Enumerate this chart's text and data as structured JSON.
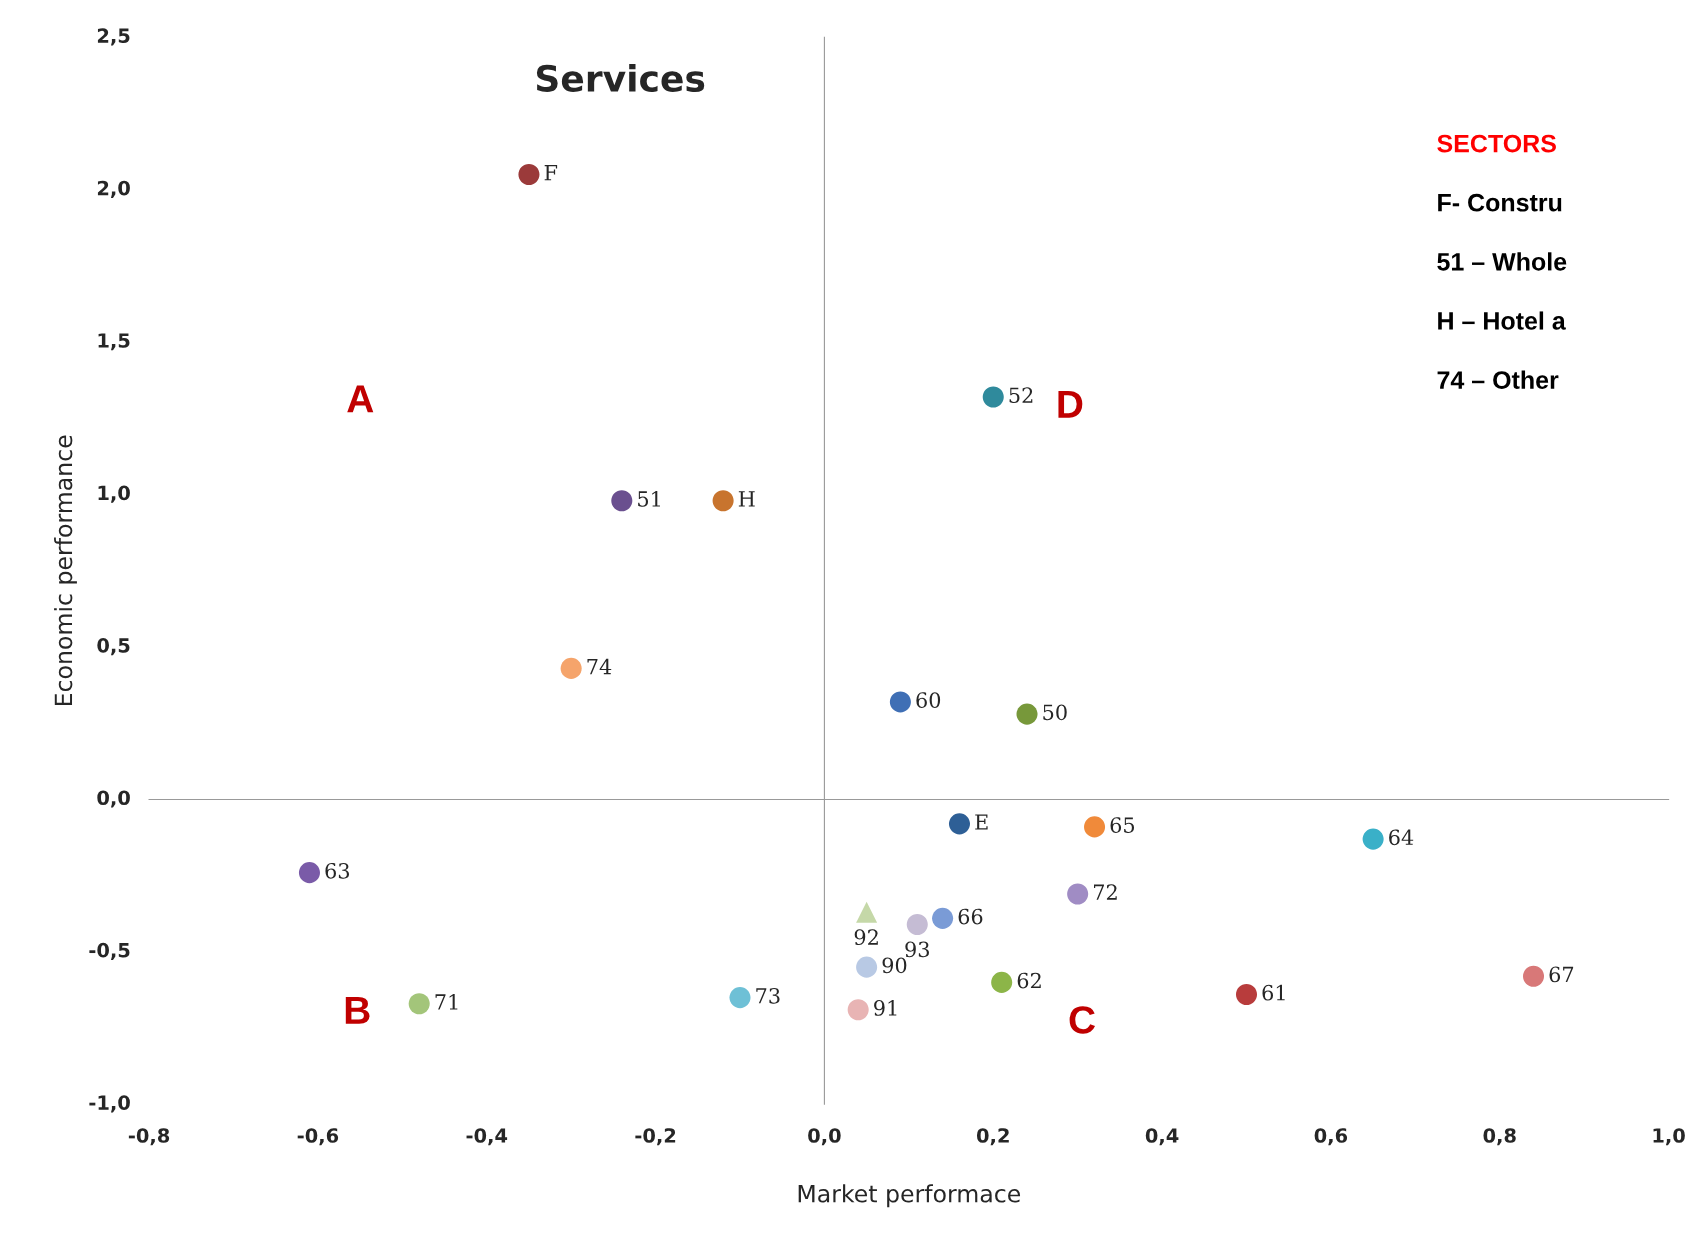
{
  "chart_data": {
    "type": "scatter",
    "title": "Services",
    "xlabel": "Market performace",
    "ylabel": "Economic performance",
    "xlim": [
      -0.8,
      1.0
    ],
    "ylim": [
      -1.0,
      2.5
    ],
    "xticks": [
      {
        "value": -0.8,
        "label": "-0,8"
      },
      {
        "value": -0.6,
        "label": "-0,6"
      },
      {
        "value": -0.4,
        "label": "-0,4"
      },
      {
        "value": -0.2,
        "label": "-0,2"
      },
      {
        "value": 0.0,
        "label": "0,0"
      },
      {
        "value": 0.2,
        "label": "0,2"
      },
      {
        "value": 0.4,
        "label": "0,4"
      },
      {
        "value": 0.6,
        "label": "0,6"
      },
      {
        "value": 0.8,
        "label": "0,8"
      },
      {
        "value": 1.0,
        "label": "1,0"
      }
    ],
    "yticks": [
      {
        "value": -1.0,
        "label": "-1,0"
      },
      {
        "value": -0.5,
        "label": "-0,5"
      },
      {
        "value": 0.0,
        "label": "0,0"
      },
      {
        "value": 0.5,
        "label": "0,5"
      },
      {
        "value": 1.0,
        "label": "1,0"
      },
      {
        "value": 1.5,
        "label": "1,5"
      },
      {
        "value": 2.0,
        "label": "2,0"
      },
      {
        "value": 2.5,
        "label": "2,5"
      }
    ],
    "marker": "circle",
    "series": [
      {
        "name": "F",
        "color": "#9b3a3a",
        "x": [
          -0.35
        ],
        "values": [
          2.05
        ]
      },
      {
        "name": "51",
        "color": "#6a4f8f",
        "x": [
          -0.24
        ],
        "values": [
          0.98
        ]
      },
      {
        "name": "H",
        "color": "#c8742e",
        "x": [
          -0.12
        ],
        "values": [
          0.98
        ]
      },
      {
        "name": "74",
        "color": "#f5a46b",
        "x": [
          -0.3
        ],
        "values": [
          0.43
        ]
      },
      {
        "name": "52",
        "color": "#2f8a9c",
        "x": [
          0.2
        ],
        "values": [
          1.32
        ]
      },
      {
        "name": "60",
        "color": "#3f6fb5",
        "x": [
          0.09
        ],
        "values": [
          0.32
        ]
      },
      {
        "name": "50",
        "color": "#77983a",
        "x": [
          0.24
        ],
        "values": [
          0.28
        ]
      },
      {
        "name": "E",
        "color": "#2e5f96",
        "x": [
          0.16
        ],
        "values": [
          -0.08
        ]
      },
      {
        "name": "65",
        "color": "#f08a3a",
        "x": [
          0.32
        ],
        "values": [
          -0.09
        ]
      },
      {
        "name": "64",
        "color": "#3ab0c8",
        "x": [
          0.65
        ],
        "values": [
          -0.13
        ]
      },
      {
        "name": "63",
        "color": "#7a5ba8",
        "x": [
          -0.61
        ],
        "values": [
          -0.24
        ]
      },
      {
        "name": "92",
        "color": "#c5d8a8",
        "x": [
          0.05
        ],
        "values": [
          -0.37
        ],
        "marker": "triangle"
      },
      {
        "name": "93",
        "color": "#c5bcd4",
        "x": [
          0.11
        ],
        "values": [
          -0.41
        ]
      },
      {
        "name": "66",
        "color": "#7a9bd6",
        "x": [
          0.14
        ],
        "values": [
          -0.39
        ]
      },
      {
        "name": "72",
        "color": "#a08cc4",
        "x": [
          0.3
        ],
        "values": [
          -0.31
        ]
      },
      {
        "name": "90",
        "color": "#b8c9e4",
        "x": [
          0.05
        ],
        "values": [
          -0.55
        ]
      },
      {
        "name": "62",
        "color": "#8cb548",
        "x": [
          0.21
        ],
        "values": [
          -0.6
        ]
      },
      {
        "name": "61",
        "color": "#b83c3c",
        "x": [
          0.5
        ],
        "values": [
          -0.64
        ]
      },
      {
        "name": "67",
        "color": "#d87878",
        "x": [
          0.84
        ],
        "values": [
          -0.58
        ]
      },
      {
        "name": "71",
        "color": "#a3c57a",
        "x": [
          -0.48
        ],
        "values": [
          -0.67
        ]
      },
      {
        "name": "73",
        "color": "#6ec0d6",
        "x": [
          -0.1
        ],
        "values": [
          -0.65
        ]
      },
      {
        "name": "91",
        "color": "#e8b4b4",
        "x": [
          0.04
        ],
        "values": [
          -0.69
        ]
      }
    ],
    "annotations": [
      "A",
      "B",
      "C",
      "D",
      "SECTORS",
      "F- Constru",
      "51 – Whole",
      "H – Hotel a",
      "74 – Other"
    ]
  }
}
